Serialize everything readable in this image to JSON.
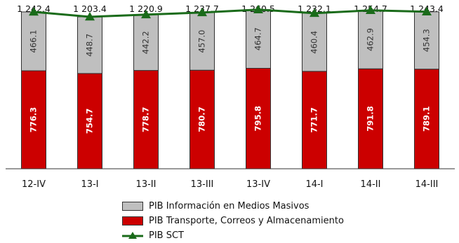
{
  "chart_data": {
    "type": "bar",
    "categories": [
      "12-IV",
      "13-I",
      "13-II",
      "13-III",
      "13-IV",
      "14-I",
      "14-II",
      "14-III"
    ],
    "series": [
      {
        "name": "PIB Transporte, Correos y Almacenamiento",
        "kind": "stacked-bar",
        "color": "#cc0000",
        "values": [
          776.3,
          754.7,
          778.7,
          780.7,
          795.8,
          771.7,
          791.8,
          789.1
        ]
      },
      {
        "name": "PIB  Información en Medios Masivos",
        "kind": "stacked-bar",
        "color": "#bfbfbf",
        "values": [
          466.1,
          448.7,
          442.2,
          457.0,
          464.7,
          460.4,
          462.9,
          454.3
        ]
      },
      {
        "name": "PIB SCT",
        "kind": "line",
        "color": "#1a6b1a",
        "values": [
          1242.4,
          1203.4,
          1220.9,
          1237.7,
          1260.5,
          1232.1,
          1254.7,
          1243.4
        ]
      }
    ],
    "value_labels": {
      "bottom": [
        "776.3",
        "754.7",
        "778.7",
        "780.7",
        "795.8",
        "771.7",
        "791.8",
        "789.1"
      ],
      "top": [
        "466.1",
        "448.7",
        "442.2",
        "457.0",
        "464.7",
        "460.4",
        "462.9",
        "454.3"
      ],
      "total": [
        "1 242.4",
        "1 203.4",
        "1 220.9",
        "1 237.7",
        "1 260.5",
        "1 232.1",
        "1 254.7",
        "1 243.4"
      ]
    },
    "legend": {
      "info": "PIB  Información en Medios Masivos",
      "transporte": "PIB Transporte, Correos y Almacenamiento",
      "sct": "PIB SCT"
    },
    "legend_position": "bottom",
    "ylim": [
      0,
      1270
    ],
    "grid": false
  }
}
